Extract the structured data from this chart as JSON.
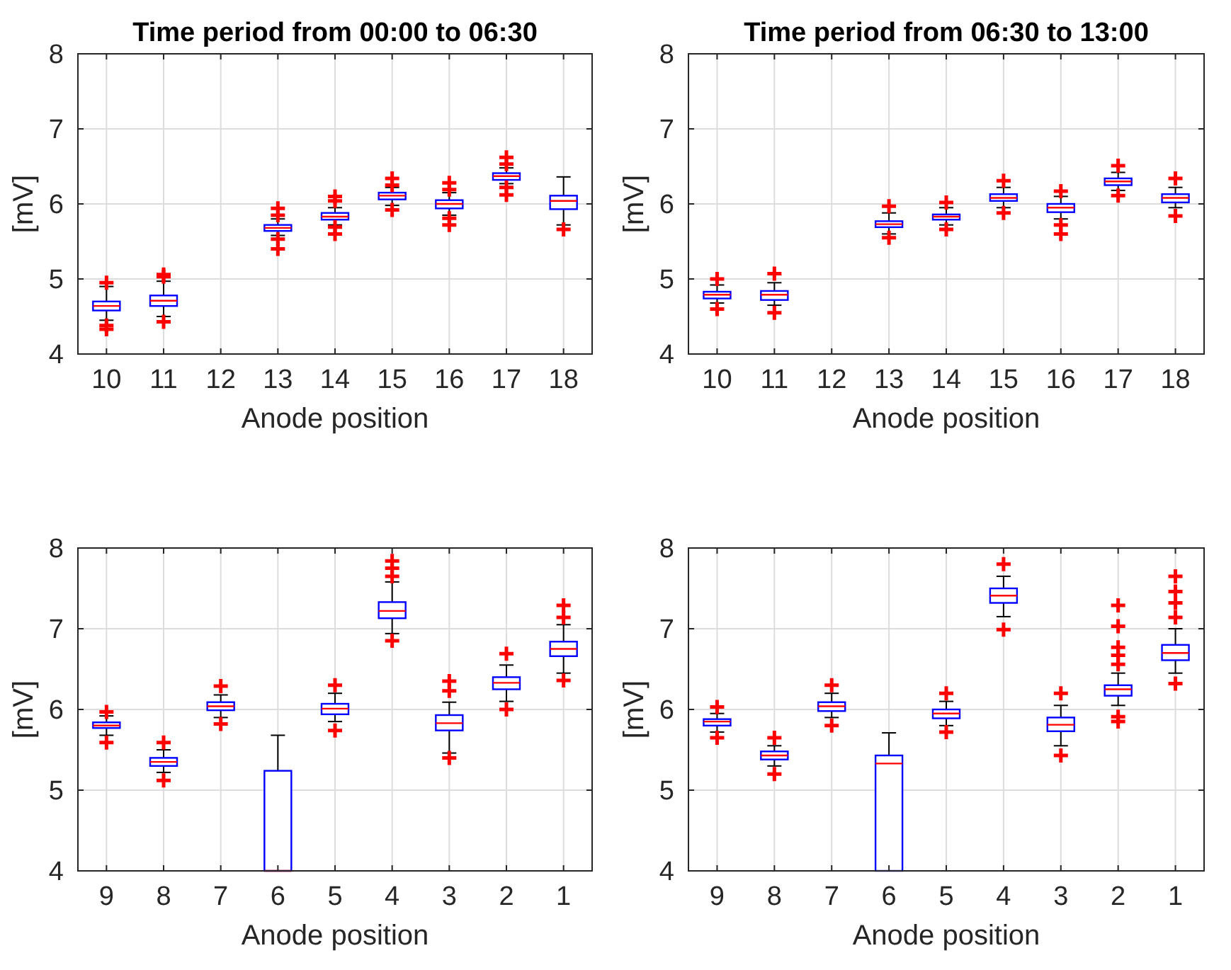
{
  "chart_data": [
    {
      "type": "box",
      "title": "Time period from 00:00 to 06:30",
      "xlabel": "Anode position",
      "ylabel": "[mV]",
      "categories": [
        "10",
        "11",
        "12",
        "13",
        "14",
        "15",
        "16",
        "17",
        "18"
      ],
      "ylim": [
        4,
        8
      ],
      "yticks": [
        4,
        5,
        6,
        7,
        8
      ],
      "grid": true,
      "color": "#0000ff",
      "boxes": [
        {
          "low": 4.45,
          "q1": 4.58,
          "median": 4.64,
          "q3": 4.7,
          "high": 4.9,
          "outliers": [
            4.95,
            4.38,
            4.33
          ]
        },
        {
          "low": 4.5,
          "q1": 4.64,
          "median": 4.71,
          "q3": 4.78,
          "high": 4.97,
          "outliers": [
            5.03,
            5.06,
            4.43
          ]
        },
        null,
        {
          "low": 5.58,
          "q1": 5.64,
          "median": 5.68,
          "q3": 5.72,
          "high": 5.8,
          "outliers": [
            5.85,
            5.94,
            5.53,
            5.4
          ]
        },
        {
          "low": 5.72,
          "q1": 5.79,
          "median": 5.83,
          "q3": 5.88,
          "high": 5.95,
          "outliers": [
            6.04,
            6.1,
            5.69,
            5.6
          ]
        },
        {
          "low": 5.98,
          "q1": 6.06,
          "median": 6.11,
          "q3": 6.15,
          "high": 6.22,
          "outliers": [
            6.25,
            6.34,
            5.92
          ]
        },
        {
          "low": 5.85,
          "q1": 5.94,
          "median": 6.0,
          "q3": 6.05,
          "high": 6.15,
          "outliers": [
            6.19,
            6.28,
            5.81,
            5.72
          ]
        },
        {
          "low": 6.27,
          "q1": 6.32,
          "median": 6.37,
          "q3": 6.41,
          "high": 6.48,
          "outliers": [
            6.53,
            6.62,
            6.22,
            6.12
          ]
        },
        {
          "low": 5.72,
          "q1": 5.93,
          "median": 6.04,
          "q3": 6.11,
          "high": 6.36,
          "outliers": [
            5.66
          ]
        }
      ]
    },
    {
      "type": "box",
      "title": "Time period from 06:30 to 13:00",
      "xlabel": "Anode position",
      "ylabel": "[mV]",
      "categories": [
        "10",
        "11",
        "12",
        "13",
        "14",
        "15",
        "16",
        "17",
        "18"
      ],
      "ylim": [
        4,
        8
      ],
      "yticks": [
        4,
        5,
        6,
        7,
        8
      ],
      "grid": true,
      "color": "#0000ff",
      "boxes": [
        {
          "low": 4.68,
          "q1": 4.74,
          "median": 4.79,
          "q3": 4.83,
          "high": 4.92,
          "outliers": [
            5.0,
            4.6
          ]
        },
        {
          "low": 4.65,
          "q1": 4.72,
          "median": 4.79,
          "q3": 4.84,
          "high": 4.95,
          "outliers": [
            5.07,
            4.55
          ]
        },
        null,
        {
          "low": 5.6,
          "q1": 5.69,
          "median": 5.73,
          "q3": 5.77,
          "high": 5.88,
          "outliers": [
            5.97,
            5.55
          ]
        },
        {
          "low": 5.72,
          "q1": 5.79,
          "median": 5.83,
          "q3": 5.86,
          "high": 5.95,
          "outliers": [
            6.02,
            5.66
          ]
        },
        {
          "low": 5.95,
          "q1": 6.04,
          "median": 6.08,
          "q3": 6.13,
          "high": 6.22,
          "outliers": [
            6.31,
            5.88
          ]
        },
        {
          "low": 5.8,
          "q1": 5.89,
          "median": 5.95,
          "q3": 6.0,
          "high": 6.1,
          "outliers": [
            6.17,
            5.72,
            5.6
          ]
        },
        {
          "low": 6.18,
          "q1": 6.25,
          "median": 6.3,
          "q3": 6.34,
          "high": 6.42,
          "outliers": [
            6.51,
            6.11
          ]
        },
        {
          "low": 5.95,
          "q1": 6.02,
          "median": 6.08,
          "q3": 6.13,
          "high": 6.22,
          "outliers": [
            6.34,
            5.84
          ]
        }
      ]
    },
    {
      "type": "box",
      "xlabel": "Anode position",
      "ylabel": "[mV]",
      "categories": [
        "9",
        "8",
        "7",
        "6",
        "5",
        "4",
        "3",
        "2",
        "1"
      ],
      "ylim": [
        4,
        8
      ],
      "yticks": [
        4,
        5,
        6,
        7,
        8
      ],
      "grid": true,
      "color": "#0000ff",
      "boxes": [
        {
          "low": 5.68,
          "q1": 5.77,
          "median": 5.8,
          "q3": 5.84,
          "high": 5.92,
          "outliers": [
            5.97,
            5.59
          ]
        },
        {
          "low": 5.22,
          "q1": 5.3,
          "median": 5.35,
          "q3": 5.4,
          "high": 5.5,
          "outliers": [
            5.59,
            5.12
          ]
        },
        {
          "low": 5.9,
          "q1": 5.99,
          "median": 6.04,
          "q3": 6.09,
          "high": 6.18,
          "outliers": [
            6.29,
            5.82
          ]
        },
        {
          "low": 4,
          "q1": 4,
          "median": 4,
          "q3": 5.24,
          "high": 5.68
        },
        {
          "low": 5.85,
          "q1": 5.94,
          "median": 6.01,
          "q3": 6.07,
          "high": 6.2,
          "outliers": [
            6.3,
            5.74
          ]
        },
        {
          "low": 6.94,
          "q1": 7.13,
          "median": 7.22,
          "q3": 7.33,
          "high": 7.58,
          "outliers": [
            7.65,
            7.75,
            7.84,
            6.85
          ]
        },
        {
          "low": 5.46,
          "q1": 5.74,
          "median": 5.83,
          "q3": 5.93,
          "high": 6.09,
          "outliers": [
            6.23,
            6.35,
            5.4
          ]
        },
        {
          "low": 6.1,
          "q1": 6.25,
          "median": 6.33,
          "q3": 6.4,
          "high": 6.55,
          "outliers": [
            6.69,
            6.0
          ]
        },
        {
          "low": 6.45,
          "q1": 6.66,
          "median": 6.75,
          "q3": 6.84,
          "high": 7.05,
          "outliers": [
            7.14,
            7.29,
            6.36
          ]
        }
      ]
    },
    {
      "type": "box",
      "xlabel": "Anode position",
      "ylabel": "[mV]",
      "categories": [
        "9",
        "8",
        "7",
        "6",
        "5",
        "4",
        "3",
        "2",
        "1"
      ],
      "ylim": [
        4,
        8
      ],
      "yticks": [
        4,
        5,
        6,
        7,
        8
      ],
      "grid": true,
      "color": "#0000ff",
      "boxes": [
        {
          "low": 5.72,
          "q1": 5.8,
          "median": 5.85,
          "q3": 5.88,
          "high": 5.95,
          "outliers": [
            6.03,
            5.65
          ]
        },
        {
          "low": 5.3,
          "q1": 5.38,
          "median": 5.43,
          "q3": 5.48,
          "high": 5.55,
          "outliers": [
            5.65,
            5.2
          ]
        },
        {
          "low": 5.9,
          "q1": 5.98,
          "median": 6.04,
          "q3": 6.09,
          "high": 6.2,
          "outliers": [
            6.3,
            5.8
          ]
        },
        {
          "low": 4,
          "q1": 4,
          "median": 5.33,
          "q3": 5.43,
          "high": 5.71
        },
        {
          "low": 5.8,
          "q1": 5.89,
          "median": 5.95,
          "q3": 6.0,
          "high": 6.1,
          "outliers": [
            6.2,
            5.72
          ]
        },
        {
          "low": 7.15,
          "q1": 7.32,
          "median": 7.41,
          "q3": 7.5,
          "high": 7.65,
          "outliers": [
            7.8,
            6.99
          ]
        },
        {
          "low": 5.55,
          "q1": 5.73,
          "median": 5.81,
          "q3": 5.9,
          "high": 6.05,
          "outliers": [
            6.2,
            5.43
          ]
        },
        {
          "low": 6.05,
          "q1": 6.17,
          "median": 6.25,
          "q3": 6.3,
          "high": 6.45,
          "outliers": [
            6.56,
            6.67,
            6.77,
            7.03,
            7.29,
            5.91,
            5.85
          ]
        },
        {
          "low": 6.45,
          "q1": 6.61,
          "median": 6.7,
          "q3": 6.8,
          "high": 7.0,
          "outliers": [
            7.14,
            7.32,
            7.46,
            7.65,
            6.32
          ]
        }
      ]
    }
  ]
}
